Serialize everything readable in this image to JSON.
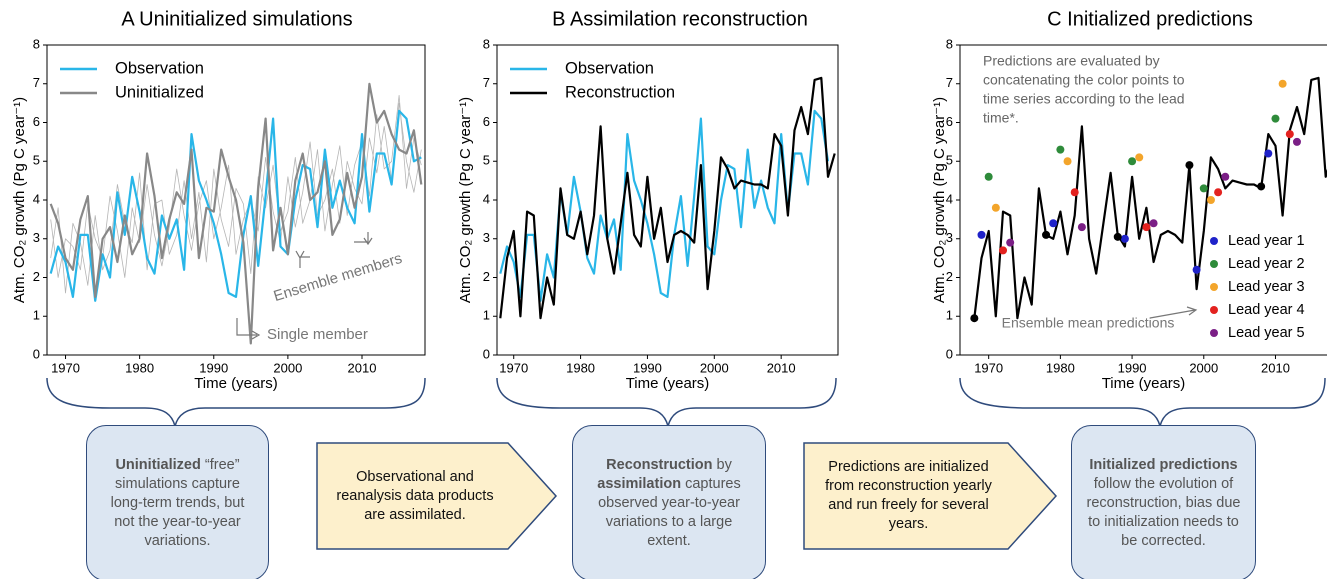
{
  "chart_data": [
    {
      "type": "line",
      "title": "A Uninitialized simulations",
      "xlabel": "Time (years)",
      "ylabel": "Atm. CO₂ growth (Pg C year⁻¹)",
      "x": [
        1968,
        1969,
        1970,
        1971,
        1972,
        1973,
        1974,
        1975,
        1976,
        1977,
        1978,
        1979,
        1980,
        1981,
        1982,
        1983,
        1984,
        1985,
        1986,
        1987,
        1988,
        1989,
        1990,
        1991,
        1992,
        1993,
        1994,
        1995,
        1996,
        1997,
        1998,
        1999,
        2000,
        2001,
        2002,
        2003,
        2004,
        2005,
        2006,
        2007,
        2008,
        2009,
        2010,
        2011,
        2012,
        2013,
        2014,
        2015,
        2016,
        2017,
        2018
      ],
      "members": {
        "color": "#b5b5b5",
        "values": [
          [
            3.5,
            2.0,
            3.0,
            2.8,
            2.2,
            3.9,
            3.0,
            2.5,
            4.1,
            3.2,
            2.0,
            3.8,
            2.9,
            4.4,
            3.1,
            2.3,
            3.3,
            4.8,
            3.6,
            2.7,
            3.9,
            4.5,
            3.0,
            3.8,
            4.9,
            2.6,
            3.5,
            4.0,
            3.2,
            5.1,
            3.7,
            2.9,
            4.6,
            3.3,
            4.2,
            5.5,
            3.6,
            4.0,
            4.8,
            3.4,
            5.0,
            4.3,
            3.9,
            5.6,
            4.7,
            5.9,
            4.5,
            6.5,
            5.0,
            4.2,
            5.3
          ],
          [
            2.5,
            3.8,
            1.6,
            3.4,
            2.9,
            1.8,
            3.6,
            2.2,
            2.7,
            4.4,
            3.4,
            2.9,
            4.7,
            2.2,
            3.9,
            4.0,
            2.6,
            3.1,
            4.5,
            3.0,
            4.2,
            2.4,
            4.8,
            3.5,
            2.8,
            4.3,
            3.9,
            2.1,
            4.6,
            3.8,
            4.9,
            3.2,
            3.7,
            5.1,
            3.4,
            4.0,
            5.3,
            3.2,
            4.4,
            5.4,
            3.6,
            4.9,
            5.5,
            4.1,
            6.2,
            4.8,
            5.0,
            6.7,
            4.3,
            5.6,
            4.9
          ]
        ]
      },
      "series": [
        {
          "name": "Observation",
          "color": "#29b6e8",
          "values": [
            2.1,
            2.8,
            2.4,
            1.5,
            3.1,
            3.1,
            1.4,
            2.6,
            2.0,
            4.2,
            3.1,
            4.6,
            3.7,
            2.5,
            2.1,
            3.6,
            3.0,
            3.5,
            2.2,
            5.7,
            4.5,
            4.0,
            3.4,
            2.6,
            1.6,
            1.5,
            3.1,
            4.1,
            2.3,
            4.1,
            6.1,
            2.8,
            2.6,
            4.0,
            4.9,
            4.8,
            3.3,
            5.3,
            3.8,
            4.5,
            3.8,
            3.4,
            5.7,
            3.7,
            5.2,
            5.2,
            4.4,
            6.3,
            6.1,
            5.0,
            5.1
          ]
        },
        {
          "name": "Uninitialized",
          "color": "#888888",
          "values": [
            3.9,
            3.4,
            2.5,
            2.2,
            3.5,
            4.1,
            1.5,
            3.0,
            3.3,
            2.4,
            3.6,
            2.6,
            3.0,
            5.2,
            4.1,
            2.5,
            3.5,
            4.2,
            3.9,
            5.3,
            2.5,
            3.8,
            3.7,
            5.3,
            4.6,
            4.0,
            2.9,
            0.3,
            4.3,
            6.1,
            2.7,
            3.8,
            2.6,
            4.5,
            5.2,
            4.0,
            4.2,
            5.0,
            3.1,
            3.5,
            4.7,
            3.8,
            4.6,
            7.0,
            6.0,
            6.3,
            5.7,
            5.3,
            5.2,
            5.8,
            4.4
          ]
        }
      ],
      "annotations": [
        "Ensemble members",
        "Single member"
      ],
      "xlim": [
        1967.5,
        2018.5
      ],
      "xticks": [
        1970,
        1980,
        1990,
        2000,
        2010
      ],
      "ylim": [
        0,
        8
      ],
      "yticks": [
        0,
        1,
        2,
        3,
        4,
        5,
        6,
        7,
        8
      ]
    },
    {
      "type": "line",
      "title": "B Assimilation reconstruction",
      "xlabel": "Time (years)",
      "ylabel": "Atm. CO₂ growth (Pg C year⁻¹)",
      "x": [
        1968,
        1969,
        1970,
        1971,
        1972,
        1973,
        1974,
        1975,
        1976,
        1977,
        1978,
        1979,
        1980,
        1981,
        1982,
        1983,
        1984,
        1985,
        1986,
        1987,
        1988,
        1989,
        1990,
        1991,
        1992,
        1993,
        1994,
        1995,
        1996,
        1997,
        1998,
        1999,
        2000,
        2001,
        2002,
        2003,
        2004,
        2005,
        2006,
        2007,
        2008,
        2009,
        2010,
        2011,
        2012,
        2013,
        2014,
        2015,
        2016,
        2017,
        2018
      ],
      "series": [
        {
          "name": "Observation",
          "color": "#29b6e8",
          "values": [
            2.1,
            2.8,
            2.4,
            1.5,
            3.1,
            3.1,
            1.4,
            2.6,
            2.0,
            4.2,
            3.1,
            4.6,
            3.7,
            2.5,
            2.1,
            3.6,
            3.0,
            3.5,
            2.2,
            5.7,
            4.5,
            4.0,
            3.4,
            2.6,
            1.6,
            1.5,
            3.1,
            4.1,
            2.3,
            4.1,
            6.1,
            2.8,
            2.6,
            4.0,
            4.9,
            4.8,
            3.3,
            5.3,
            3.8,
            4.5,
            3.8,
            3.4,
            5.7,
            3.7,
            5.2,
            5.2,
            4.4,
            6.3,
            6.1,
            5.0,
            null
          ]
        },
        {
          "name": "Reconstruction",
          "color": "#000000",
          "values": [
            0.95,
            2.5,
            3.2,
            1.0,
            3.7,
            3.6,
            0.95,
            2.0,
            1.3,
            4.3,
            3.1,
            3.0,
            3.7,
            2.6,
            3.6,
            5.9,
            3.0,
            2.1,
            3.4,
            4.7,
            3.1,
            2.8,
            4.6,
            3.0,
            3.8,
            2.4,
            3.1,
            3.2,
            3.1,
            2.9,
            4.9,
            1.7,
            3.2,
            5.1,
            4.8,
            4.3,
            4.5,
            4.45,
            4.4,
            4.4,
            4.3,
            5.7,
            5.4,
            3.6,
            5.8,
            6.4,
            5.7,
            7.1,
            7.15,
            4.6,
            5.2
          ]
        }
      ],
      "xlim": [
        1967.5,
        2018.5
      ],
      "xticks": [
        1970,
        1980,
        1990,
        2000,
        2010
      ],
      "ylim": [
        0,
        8
      ],
      "yticks": [
        0,
        1,
        2,
        3,
        4,
        5,
        6,
        7,
        8
      ]
    },
    {
      "type": "line",
      "title": "C Initialized predictions",
      "xlabel": "Time (years)",
      "ylabel": "Atm. CO₂ growth (Pg C year⁻¹)",
      "x": [
        1968,
        1969,
        1970,
        1971,
        1972,
        1973,
        1974,
        1975,
        1976,
        1977,
        1978,
        1979,
        1980,
        1981,
        1982,
        1983,
        1984,
        1985,
        1986,
        1987,
        1988,
        1989,
        1990,
        1991,
        1992,
        1993,
        1994,
        1995,
        1996,
        1997,
        1998,
        1999,
        2000,
        2001,
        2002,
        2003,
        2004,
        2005,
        2006,
        2007,
        2008,
        2009,
        2010,
        2011,
        2012,
        2013,
        2014,
        2015,
        2016,
        2017,
        2018
      ],
      "line": {
        "color": "#000000",
        "values": [
          0.95,
          2.5,
          3.2,
          1.0,
          3.7,
          3.6,
          0.95,
          2.0,
          1.3,
          4.3,
          3.1,
          3.0,
          3.7,
          2.6,
          3.6,
          5.9,
          3.0,
          2.1,
          3.4,
          4.7,
          3.1,
          2.8,
          4.6,
          3.0,
          3.8,
          2.4,
          3.1,
          3.2,
          3.1,
          2.9,
          4.9,
          1.7,
          3.2,
          5.1,
          4.8,
          4.3,
          4.5,
          4.45,
          4.4,
          4.4,
          4.3,
          5.7,
          5.4,
          3.6,
          5.8,
          6.4,
          5.7,
          7.1,
          7.15,
          4.6,
          5.2
        ]
      },
      "init_points": {
        "color": "#000000",
        "x": [
          1968,
          1978,
          1988,
          1998,
          2008
        ],
        "values": [
          0.95,
          3.1,
          3.05,
          4.9,
          4.35
        ]
      },
      "series": [
        {
          "name": "Lead year 1",
          "color": "#1f22c9",
          "x": [
            1969,
            1979,
            1989,
            1999,
            2009
          ],
          "values": [
            3.1,
            3.4,
            3.0,
            2.2,
            5.2
          ]
        },
        {
          "name": "Lead year 2",
          "color": "#2e8b3a",
          "x": [
            1970,
            1980,
            1990,
            2000,
            2010
          ],
          "values": [
            4.6,
            5.3,
            5.0,
            4.3,
            6.1
          ]
        },
        {
          "name": "Lead year 3",
          "color": "#f3a52b",
          "x": [
            1971,
            1981,
            1991,
            2001,
            2011
          ],
          "values": [
            3.8,
            5.0,
            5.1,
            4.0,
            7.0
          ]
        },
        {
          "name": "Lead year 4",
          "color": "#e3221f",
          "x": [
            1972,
            1982,
            1992,
            2002,
            2012
          ],
          "values": [
            2.7,
            4.2,
            3.3,
            4.2,
            5.7
          ]
        },
        {
          "name": "Lead year 5",
          "color": "#7b1f86",
          "x": [
            1973,
            1983,
            1993,
            2003,
            2013
          ],
          "values": [
            2.9,
            3.3,
            3.4,
            4.6,
            5.5
          ]
        }
      ],
      "note": [
        "Predictions are evaluated by",
        "concatenating the color points to",
        "time series according to the lead",
        "time*."
      ],
      "annotation": "Ensemble mean predictions",
      "xlim": [
        1966,
        2019
      ],
      "xticks": [
        1970,
        1980,
        1990,
        2000,
        2010
      ],
      "ylim": [
        0,
        8
      ],
      "yticks": [
        0,
        1,
        2,
        3,
        4,
        5,
        6,
        7,
        8
      ]
    }
  ],
  "boxes": [
    {
      "parts": [
        {
          "text": "Uninitialized",
          "bold": true
        },
        {
          "text": " “free” simulations capture long-term trends, but not the year-to-year variations.",
          "bold": false
        }
      ]
    },
    {
      "parts": [
        {
          "text": "Observational and reanalysis data products are assimilated.",
          "bold": false
        }
      ]
    },
    {
      "parts": [
        {
          "text": "Reconstruction",
          "bold": true
        },
        {
          "text": " by ",
          "bold": false
        },
        {
          "text": "assimilation",
          "bold": true
        },
        {
          "text": " captures observed year-to-year variations to a large extent.",
          "bold": false
        }
      ]
    },
    {
      "parts": [
        {
          "text": "Predictions are initialized from reconstruction yearly and run freely for several years.",
          "bold": false
        }
      ]
    },
    {
      "parts": [
        {
          "text": "Initialized predictions",
          "bold": true
        },
        {
          "text": " follow the evolution of reconstruction, bias due to initialization needs to be corrected.",
          "bold": false
        }
      ]
    }
  ]
}
